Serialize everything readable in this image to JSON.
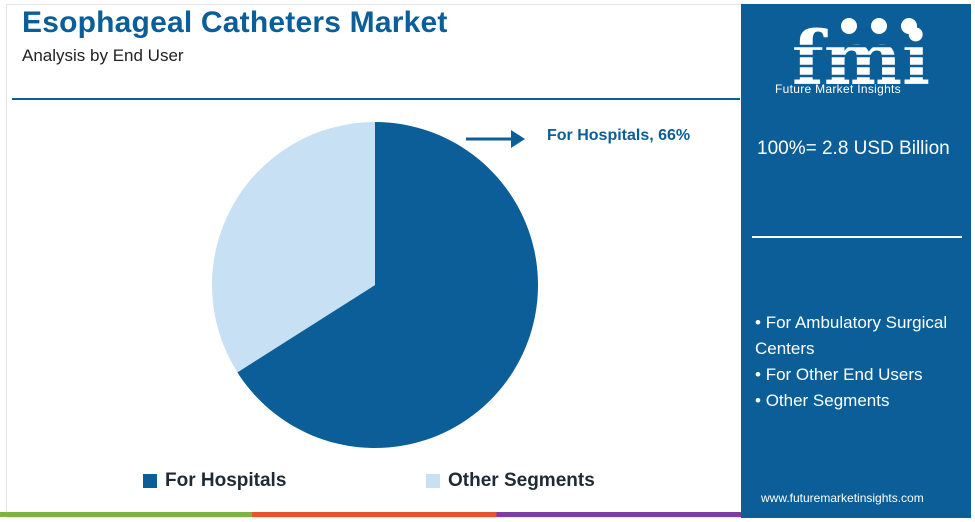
{
  "header": {
    "title": "Esophageal Catheters Market",
    "subtitle": "Analysis by End User"
  },
  "chart_data": {
    "type": "pie",
    "title": "Esophageal Catheters Market",
    "subtitle": "Analysis by End User",
    "slices": [
      {
        "label": "For Hospitals",
        "value": 66,
        "color": "#0b5e97"
      },
      {
        "label": "Other Segments",
        "value": 34,
        "color": "#c7e0f3"
      }
    ],
    "callout": "For Hospitals, 66%",
    "legend_position": "bottom"
  },
  "sidebar": {
    "logo_letters": "fmi",
    "logo_caption": "Future Market Insights",
    "total": "100%= 2.8 USD Billion",
    "other_segments": [
      "For Ambulatory Surgical Centers",
      "For Other End Users",
      "Other Segments"
    ],
    "website": "www.futuremarketinsights.com"
  },
  "colors": {
    "brand": "#0b5e97",
    "light": "#c7e0f3",
    "accent_green": "#7cb342",
    "accent_orange": "#e4572e",
    "accent_purple": "#7b3fa0"
  }
}
